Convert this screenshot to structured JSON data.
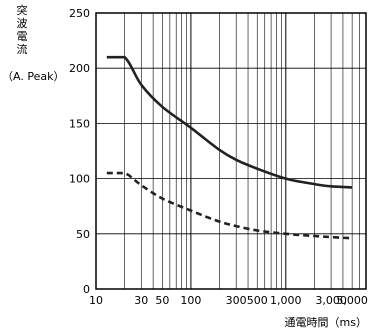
{
  "chart_data": {
    "type": "line",
    "ylabel_chars": [
      "突",
      "波",
      "電",
      "流"
    ],
    "ylabel_unit": "（A. Peak）",
    "xlabel": "通電時間（ms）",
    "x_scale": "log",
    "xlim": [
      10,
      7000
    ],
    "ylim": [
      0,
      250
    ],
    "grid": true,
    "x_ticks": [
      10,
      30,
      50,
      100,
      300,
      500,
      1000,
      3000,
      5000
    ],
    "x_tick_labels": [
      "10",
      "30",
      "50",
      "100",
      "300",
      "500",
      "1,000",
      "3,000",
      "5,000"
    ],
    "y_ticks": [
      0,
      50,
      100,
      150,
      200,
      250
    ],
    "y_tick_labels": [
      "0",
      "50",
      "100",
      "150",
      "200",
      "250"
    ],
    "series": [
      {
        "style": "solid",
        "color": "#222222",
        "x": [
          13,
          20,
          30,
          50,
          100,
          200,
          300,
          500,
          1000,
          2000,
          3000,
          5000
        ],
        "y": [
          210,
          210,
          185,
          165,
          146,
          126,
          117,
          109,
          100,
          95,
          93,
          92
        ]
      },
      {
        "style": "dashed",
        "color": "#222222",
        "x": [
          13,
          20,
          30,
          50,
          100,
          200,
          300,
          500,
          1000,
          2000,
          3000,
          5000
        ],
        "y": [
          105,
          105,
          94,
          82,
          71,
          61,
          57,
          53,
          50,
          48,
          47,
          46
        ]
      }
    ]
  }
}
